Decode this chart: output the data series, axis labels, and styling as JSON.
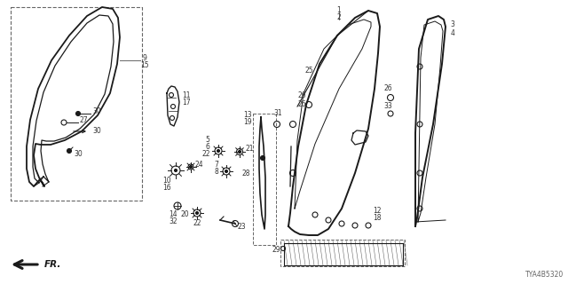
{
  "diagram_code": "TYA4B5320",
  "bg_color": "#ffffff",
  "line_color": "#1a1a1a",
  "label_color": "#333333",
  "gray_color": "#666666",
  "fig_width": 6.4,
  "fig_height": 3.2,
  "dpi": 100,
  "seal_outer_x": [
    55,
    50,
    42,
    36,
    33,
    33,
    38,
    50,
    68,
    90,
    112,
    128,
    138,
    142,
    140,
    136,
    125,
    108,
    88,
    68,
    52,
    43,
    40,
    42,
    48,
    55
  ],
  "seal_outer_y": [
    195,
    205,
    210,
    205,
    192,
    165,
    130,
    95,
    60,
    30,
    14,
    10,
    14,
    30,
    55,
    90,
    120,
    145,
    158,
    163,
    162,
    160,
    175,
    190,
    198,
    195
  ],
  "seal_inner_x": [
    58,
    54,
    47,
    42,
    40,
    41,
    47,
    58,
    73,
    90,
    108,
    121,
    129,
    133,
    131,
    127,
    117,
    102,
    86,
    68,
    56,
    48,
    46,
    48,
    53,
    58
  ],
  "seal_inner_y": [
    193,
    202,
    206,
    201,
    190,
    166,
    132,
    99,
    66,
    38,
    22,
    17,
    21,
    35,
    58,
    90,
    118,
    141,
    155,
    159,
    158,
    156,
    170,
    186,
    194,
    193
  ]
}
